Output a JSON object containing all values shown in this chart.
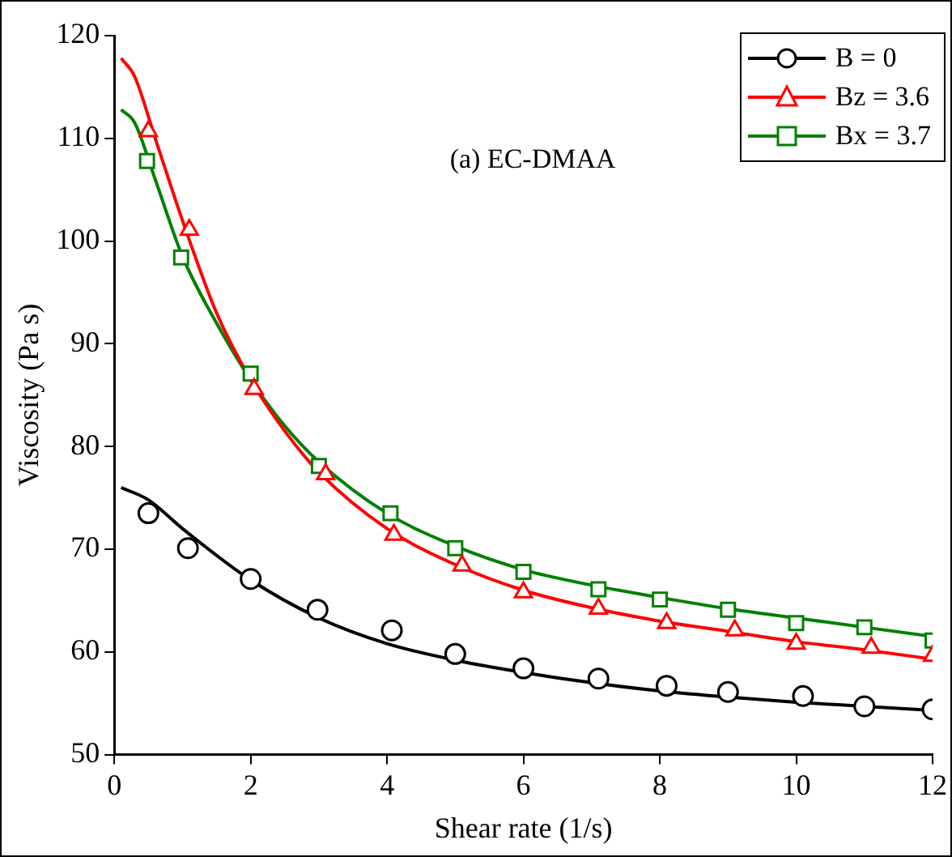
{
  "chart_data": {
    "type": "scatter",
    "xlabel": "Shear rate (1/s)",
    "ylabel": "Viscosity (Pa s)",
    "annotations": [
      "(a) EC-DMAA"
    ],
    "xlim": [
      0,
      12
    ],
    "xticks": [
      0,
      2,
      4,
      6,
      8,
      10,
      12
    ],
    "ylim": [
      50,
      120
    ],
    "yticks": [
      50,
      60,
      70,
      80,
      90,
      100,
      110,
      120
    ],
    "grid": false,
    "legend": "top right",
    "series": [
      {
        "name": "B = 0",
        "marker": "circle",
        "color": "#000000",
        "x": [
          0.5,
          1.08,
          2,
          2.98,
          4.07,
          5,
          6,
          7.1,
          8.1,
          9,
          10.1,
          11,
          12
        ],
        "values": [
          73.5,
          70.1,
          67.1,
          64.1,
          62.1,
          59.8,
          58.4,
          57.4,
          56.7,
          56.1,
          55.7,
          54.7,
          54.4
        ]
      },
      {
        "name": "Bz = 3.6",
        "marker": "triangle",
        "color": "#ff0000",
        "x": [
          0.5,
          1.1,
          2.05,
          3.1,
          4.1,
          5.1,
          6,
          7.1,
          8.1,
          9.1,
          10,
          11.1,
          12
        ],
        "values": [
          110.7,
          101.1,
          85.6,
          77.3,
          71.4,
          68.4,
          65.8,
          64.2,
          62.8,
          62.1,
          60.8,
          60.4,
          59.6
        ]
      },
      {
        "name": "Bx = 3.7",
        "marker": "square",
        "color": "#008000",
        "x": [
          0.48,
          0.98,
          2,
          3,
          4.05,
          5,
          6,
          7.1,
          8,
          9,
          10,
          11,
          12
        ],
        "values": [
          107.8,
          98.4,
          87.1,
          78.1,
          73.5,
          70.1,
          67.8,
          66.1,
          65.1,
          64.1,
          62.8,
          62.4,
          61.1
        ]
      },
      {
        "type": "line",
        "marker": "none",
        "color": "#000000",
        "x": [
          0.1,
          0.5,
          1,
          2,
          3,
          4,
          5,
          6,
          7,
          8,
          9,
          10,
          11,
          12
        ],
        "values": [
          76,
          74.8,
          72,
          67,
          63.3,
          60.8,
          59.2,
          58,
          57,
          56.2,
          55.6,
          55.1,
          54.7,
          54.3
        ]
      },
      {
        "type": "line",
        "marker": "none",
        "color": "#ff0000",
        "x": [
          0.1,
          0.3,
          0.6,
          1,
          1.5,
          2,
          2.5,
          3,
          4,
          5,
          6,
          7,
          8,
          9,
          10,
          11,
          12
        ],
        "values": [
          117.8,
          116,
          110,
          102,
          93,
          86.5,
          81.5,
          77.5,
          72,
          68.5,
          66,
          64.3,
          63,
          62,
          61,
          60.2,
          59.3
        ]
      },
      {
        "type": "line",
        "marker": "none",
        "color": "#008000",
        "x": [
          0.1,
          0.3,
          0.6,
          1,
          1.5,
          2,
          2.5,
          3,
          4,
          5,
          6,
          7,
          8,
          9,
          10,
          11,
          12
        ],
        "values": [
          112.8,
          111.5,
          106,
          98.5,
          92,
          86.5,
          82,
          78.5,
          73.5,
          70.3,
          68,
          66.5,
          65.3,
          64.2,
          63.3,
          62.4,
          61.5
        ]
      }
    ]
  }
}
